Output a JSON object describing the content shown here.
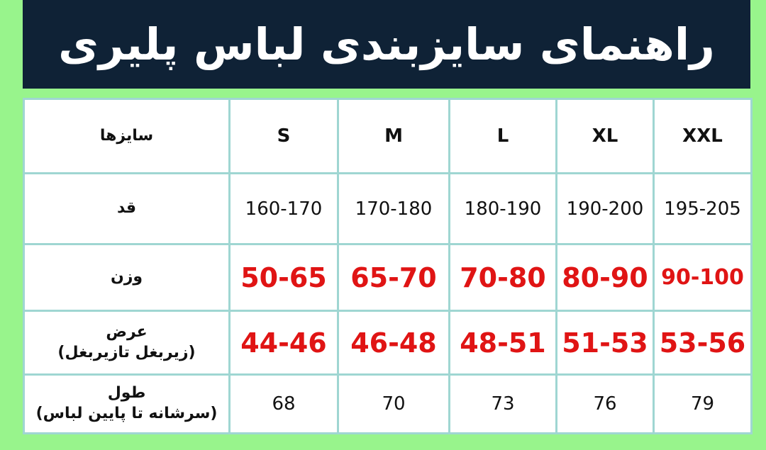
{
  "title": "راهنمای سایزبندی لباس پلیری",
  "colors": {
    "background": "#98f48c",
    "banner": "#0f2236",
    "highlight": "#e01414",
    "border": "#9fd6d2"
  },
  "table": {
    "sizes_label": "سایزها",
    "sizes": [
      "S",
      "M",
      "L",
      "XL",
      "XXL"
    ],
    "rows": [
      {
        "label": "قد",
        "sub": "",
        "values": [
          "160-170",
          "170-180",
          "180-190",
          "190-200",
          "195-205"
        ]
      },
      {
        "label": "وزن",
        "sub": "",
        "values": [
          "50-65",
          "65-70",
          "70-80",
          "80-90",
          "90-100"
        ]
      },
      {
        "label": "عرض",
        "sub": "(زیربغل تازیربغل)",
        "values": [
          "44-46",
          "46-48",
          "48-51",
          "51-53",
          "53-56"
        ]
      },
      {
        "label": "طول",
        "sub": "(سرشانه تا پایین لباس)",
        "values": [
          "68",
          "70",
          "73",
          "76",
          "79"
        ]
      }
    ]
  }
}
